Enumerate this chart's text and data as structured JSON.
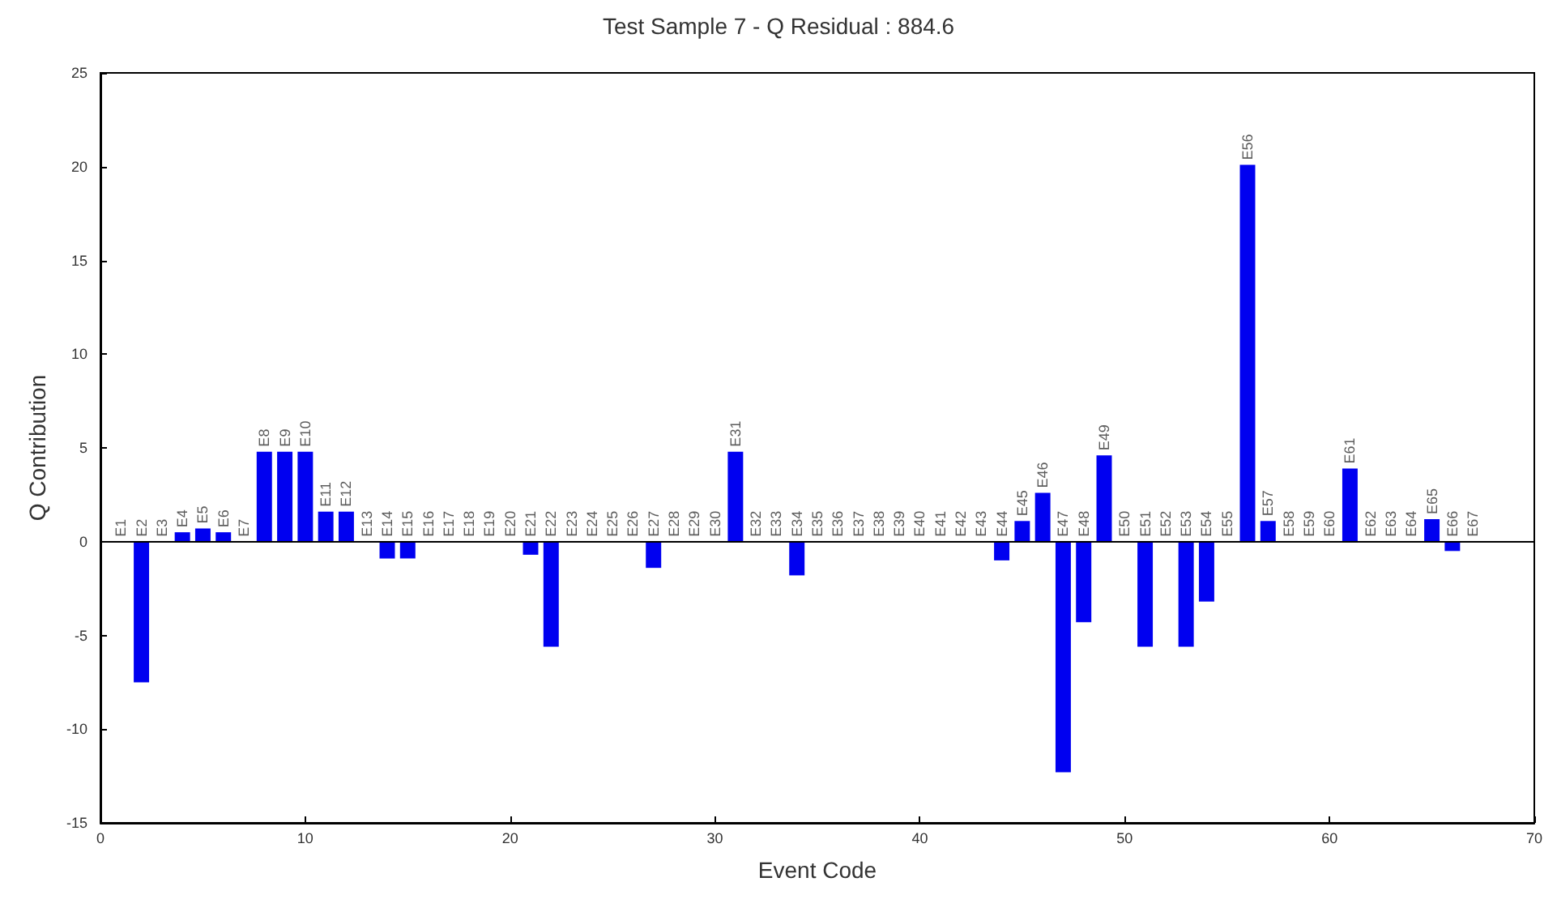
{
  "chart_data": {
    "type": "bar",
    "title": "Test Sample 7 - Q Residual : 884.6",
    "xlabel": "Event Code",
    "ylabel": "Q Contribution",
    "x": [
      1,
      2,
      3,
      4,
      5,
      6,
      7,
      8,
      9,
      10,
      11,
      12,
      13,
      14,
      15,
      16,
      17,
      18,
      19,
      20,
      21,
      22,
      23,
      24,
      25,
      26,
      27,
      28,
      29,
      30,
      31,
      32,
      33,
      34,
      35,
      36,
      37,
      38,
      39,
      40,
      41,
      42,
      43,
      44,
      45,
      46,
      47,
      48,
      49,
      50,
      51,
      52,
      53,
      54,
      55,
      56,
      57,
      58,
      59,
      60,
      61,
      62,
      63,
      64,
      65,
      66,
      67
    ],
    "series": [
      {
        "color": "#0000f0",
        "values": [
          0,
          -7.5,
          0,
          0.5,
          0.7,
          0.5,
          0,
          4.8,
          4.8,
          4.8,
          1.6,
          1.6,
          0,
          -0.9,
          -0.9,
          0,
          0,
          0,
          0,
          0,
          -0.7,
          -5.6,
          0,
          0,
          0,
          0,
          -1.4,
          0,
          0,
          0,
          4.8,
          0,
          0,
          -1.8,
          0,
          0,
          0,
          0,
          0,
          0,
          0,
          0,
          0,
          -1.0,
          1.1,
          2.6,
          -12.3,
          -4.3,
          4.6,
          0,
          -5.6,
          0,
          -5.6,
          -3.2,
          0,
          20.1,
          1.1,
          0,
          0,
          0,
          3.9,
          0,
          0,
          0,
          1.2,
          -0.5,
          0
        ]
      }
    ],
    "xlim": [
      0,
      70
    ],
    "xticks": [
      0,
      10,
      20,
      30,
      40,
      50,
      60,
      70
    ],
    "ylim": [
      -15,
      25
    ],
    "yticks": [
      -15,
      -10,
      -5,
      0,
      5,
      10,
      15,
      20,
      25
    ],
    "grid": false,
    "ref_lines": [
      {
        "axis": "y",
        "value": 0,
        "color": "#000000"
      }
    ],
    "annotations": [
      {
        "text": "E1",
        "x": 1,
        "y": 0
      },
      {
        "text": "E2",
        "x": 2,
        "y": 0
      },
      {
        "text": "E3",
        "x": 3,
        "y": 0
      },
      {
        "text": "E4",
        "x": 4,
        "y": 0.5
      },
      {
        "text": "E5",
        "x": 5,
        "y": 0.7
      },
      {
        "text": "E6",
        "x": 6,
        "y": 0.5
      },
      {
        "text": "E7",
        "x": 7,
        "y": 0
      },
      {
        "text": "E8",
        "x": 8,
        "y": 4.8
      },
      {
        "text": "E9",
        "x": 9,
        "y": 4.8
      },
      {
        "text": "E10",
        "x": 10,
        "y": 4.8
      },
      {
        "text": "E11",
        "x": 11,
        "y": 1.6
      },
      {
        "text": "E12",
        "x": 12,
        "y": 1.6
      },
      {
        "text": "E13",
        "x": 13,
        "y": 0
      },
      {
        "text": "E14",
        "x": 14,
        "y": 0
      },
      {
        "text": "E15",
        "x": 15,
        "y": 0
      },
      {
        "text": "E16",
        "x": 16,
        "y": 0
      },
      {
        "text": "E17",
        "x": 17,
        "y": 0
      },
      {
        "text": "E18",
        "x": 18,
        "y": 0
      },
      {
        "text": "E19",
        "x": 19,
        "y": 0
      },
      {
        "text": "E20",
        "x": 20,
        "y": 0
      },
      {
        "text": "E21",
        "x": 21,
        "y": 0
      },
      {
        "text": "E22",
        "x": 22,
        "y": 0
      },
      {
        "text": "E23",
        "x": 23,
        "y": 0
      },
      {
        "text": "E24",
        "x": 24,
        "y": 0
      },
      {
        "text": "E25",
        "x": 25,
        "y": 0
      },
      {
        "text": "E26",
        "x": 26,
        "y": 0
      },
      {
        "text": "E27",
        "x": 27,
        "y": 0
      },
      {
        "text": "E28",
        "x": 28,
        "y": 0
      },
      {
        "text": "E29",
        "x": 29,
        "y": 0
      },
      {
        "text": "E30",
        "x": 30,
        "y": 0
      },
      {
        "text": "E31",
        "x": 31,
        "y": 4.8
      },
      {
        "text": "E32",
        "x": 32,
        "y": 0
      },
      {
        "text": "E33",
        "x": 33,
        "y": 0
      },
      {
        "text": "E34",
        "x": 34,
        "y": 0
      },
      {
        "text": "E35",
        "x": 35,
        "y": 0
      },
      {
        "text": "E36",
        "x": 36,
        "y": 0
      },
      {
        "text": "E37",
        "x": 37,
        "y": 0
      },
      {
        "text": "E38",
        "x": 38,
        "y": 0
      },
      {
        "text": "E39",
        "x": 39,
        "y": 0
      },
      {
        "text": "E40",
        "x": 40,
        "y": 0
      },
      {
        "text": "E41",
        "x": 41,
        "y": 0
      },
      {
        "text": "E42",
        "x": 42,
        "y": 0
      },
      {
        "text": "E43",
        "x": 43,
        "y": 0
      },
      {
        "text": "E44",
        "x": 44,
        "y": 0
      },
      {
        "text": "E45",
        "x": 45,
        "y": 1.1
      },
      {
        "text": "E46",
        "x": 46,
        "y": 2.6
      },
      {
        "text": "E47",
        "x": 47,
        "y": 0
      },
      {
        "text": "E48",
        "x": 48,
        "y": 0
      },
      {
        "text": "E49",
        "x": 49,
        "y": 4.6
      },
      {
        "text": "E50",
        "x": 50,
        "y": 0
      },
      {
        "text": "E51",
        "x": 51,
        "y": 0
      },
      {
        "text": "E52",
        "x": 52,
        "y": 0
      },
      {
        "text": "E53",
        "x": 53,
        "y": 0
      },
      {
        "text": "E54",
        "x": 54,
        "y": 0
      },
      {
        "text": "E55",
        "x": 55,
        "y": 0
      },
      {
        "text": "E56",
        "x": 56,
        "y": 20.1
      },
      {
        "text": "E57",
        "x": 57,
        "y": 1.1
      },
      {
        "text": "E58",
        "x": 58,
        "y": 0
      },
      {
        "text": "E59",
        "x": 59,
        "y": 0
      },
      {
        "text": "E60",
        "x": 60,
        "y": 0
      },
      {
        "text": "E61",
        "x": 61,
        "y": 3.9
      },
      {
        "text": "E62",
        "x": 62,
        "y": 0
      },
      {
        "text": "E63",
        "x": 63,
        "y": 0
      },
      {
        "text": "E64",
        "x": 64,
        "y": 0
      },
      {
        "text": "E65",
        "x": 65,
        "y": 1.2
      },
      {
        "text": "E66",
        "x": 66,
        "y": 0
      },
      {
        "text": "E67",
        "x": 67,
        "y": 0
      }
    ]
  }
}
